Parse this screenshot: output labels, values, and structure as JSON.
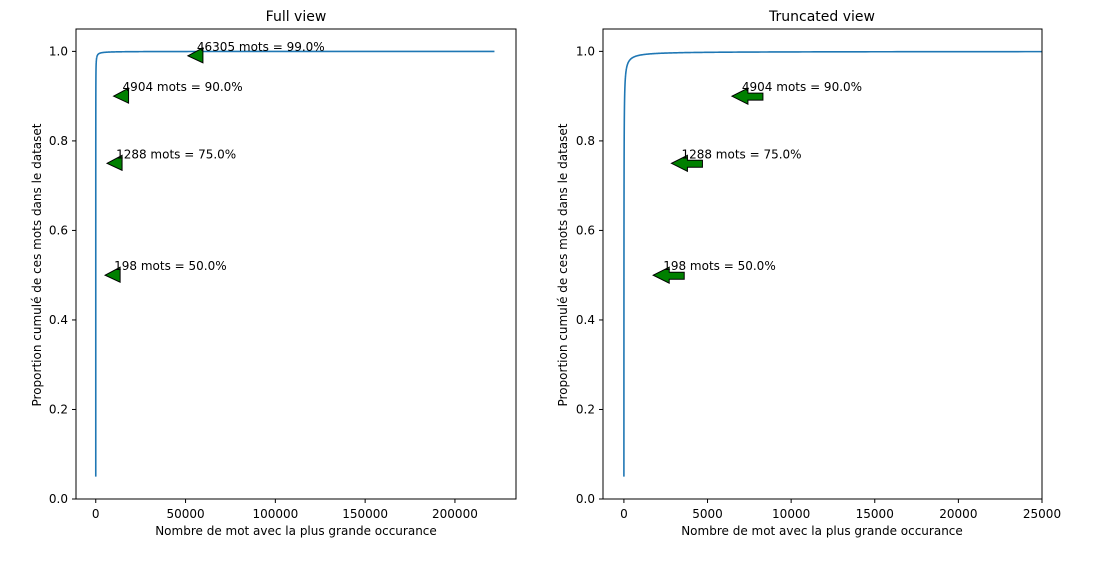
{
  "chart_data": [
    {
      "type": "line",
      "title": "Full view",
      "xlabel": "Nombre de mot avec la plus grande occurance",
      "ylabel": "Proportion cumulé de ces mots dans le dataset",
      "xlim": [
        -11000,
        234000
      ],
      "ylim": [
        0,
        1.05
      ],
      "xticks": [
        0,
        50000,
        100000,
        150000,
        200000
      ],
      "xtick_labels": [
        "0",
        "50000",
        "100000",
        "150000",
        "200000"
      ],
      "yticks": [
        0,
        0.2,
        0.4,
        0.6,
        0.8,
        1.0
      ],
      "ytick_labels": [
        "0.0",
        "0.2",
        "0.4",
        "0.6",
        "0.8",
        "1.0"
      ],
      "grid": false,
      "line_color": "#1f77b4",
      "curve_end_x": 222000,
      "annotations": [
        {
          "x": 198,
          "y": 0.5,
          "text": "198 mots = 50.0%"
        },
        {
          "x": 1288,
          "y": 0.75,
          "text": "1288 mots = 75.0%"
        },
        {
          "x": 4904,
          "y": 0.9,
          "text": "4904 mots = 90.0%"
        },
        {
          "x": 46305,
          "y": 0.99,
          "text": "46305 mots = 99.0%"
        }
      ]
    },
    {
      "type": "line",
      "title": "Truncated view",
      "xlabel": "Nombre de mot avec la plus grande occurance",
      "ylabel": "Proportion cumulé de ces mots dans le dataset",
      "xlim": [
        -1250,
        25000
      ],
      "ylim": [
        0,
        1.05
      ],
      "xticks": [
        0,
        5000,
        10000,
        15000,
        20000,
        25000
      ],
      "xtick_labels": [
        "0",
        "5000",
        "10000",
        "15000",
        "20000",
        "25000"
      ],
      "yticks": [
        0,
        0.2,
        0.4,
        0.6,
        0.8,
        1.0
      ],
      "ytick_labels": [
        "0.0",
        "0.2",
        "0.4",
        "0.6",
        "0.8",
        "1.0"
      ],
      "grid": false,
      "line_color": "#1f77b4",
      "curve_end_x": 25000,
      "annotations": [
        {
          "x": 198,
          "y": 0.5,
          "text": "198 mots = 50.0%"
        },
        {
          "x": 1288,
          "y": 0.75,
          "text": "1288 mots = 75.0%"
        },
        {
          "x": 4904,
          "y": 0.9,
          "text": "4904 mots = 90.0%"
        }
      ]
    }
  ],
  "colors": {
    "arrow_fill": "#008000",
    "arrow_stroke": "#000000",
    "axis": "#000000"
  }
}
